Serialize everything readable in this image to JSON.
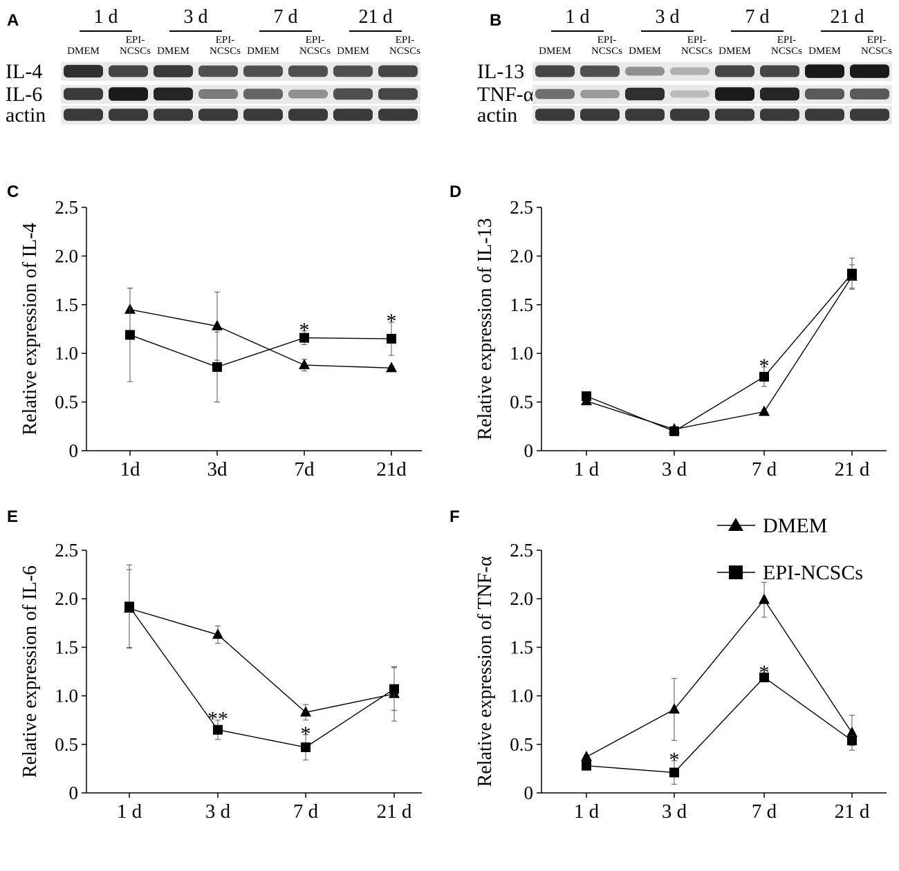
{
  "blots": [
    {
      "panel": "A",
      "timepoints": [
        "1 d",
        "3 d",
        "7 d",
        "21 d"
      ],
      "conditions": [
        "DMEM",
        "EPI-\nNCSCs"
      ],
      "rows": [
        "IL-4",
        "IL-6",
        "actin"
      ],
      "intensities": [
        [
          0.85,
          0.75,
          0.8,
          0.7,
          0.7,
          0.7,
          0.7,
          0.75
        ],
        [
          0.8,
          0.95,
          0.9,
          0.5,
          0.6,
          0.4,
          0.7,
          0.75
        ],
        [
          0.8,
          0.8,
          0.8,
          0.8,
          0.8,
          0.8,
          0.8,
          0.8
        ]
      ]
    },
    {
      "panel": "B",
      "timepoints": [
        "1 d",
        "3 d",
        "7 d",
        "21 d"
      ],
      "conditions": [
        "DMEM",
        "EPI-\nNCSCs"
      ],
      "rows": [
        "IL-13",
        "TNF-α",
        "actin"
      ],
      "intensities": [
        [
          0.75,
          0.7,
          0.4,
          0.25,
          0.75,
          0.75,
          0.95,
          0.95
        ],
        [
          0.55,
          0.35,
          0.85,
          0.2,
          0.95,
          0.9,
          0.65,
          0.65
        ],
        [
          0.8,
          0.8,
          0.8,
          0.8,
          0.8,
          0.8,
          0.8,
          0.8
        ]
      ]
    }
  ],
  "legend": {
    "entries": [
      {
        "name": "DMEM",
        "marker": "triangle"
      },
      {
        "name": "EPI-NCSCs",
        "marker": "square"
      }
    ]
  },
  "chart_data": [
    {
      "panel": "C",
      "type": "line",
      "ylabel": "Relative expression of IL-4",
      "categories": [
        "1d",
        "3d",
        "7d",
        "21d"
      ],
      "yticks": [
        "0",
        "0.5",
        "1.0",
        "1.5",
        "2.0",
        "2.5"
      ],
      "ylim": [
        0,
        2.5
      ],
      "series": [
        {
          "name": "DMEM",
          "marker": "triangle",
          "values": [
            1.45,
            1.28,
            0.88,
            0.85
          ],
          "errors": [
            0.22,
            0.35,
            0.06,
            0.02
          ]
        },
        {
          "name": "EPI-NCSCs",
          "marker": "square",
          "values": [
            1.19,
            0.86,
            1.16,
            1.15
          ],
          "errors": [
            0.48,
            0.36,
            0.07,
            0.17
          ]
        }
      ],
      "annotations": [
        {
          "category": 2,
          "value": 1.23,
          "text": "*"
        },
        {
          "category": 3,
          "value": 1.32,
          "text": "*"
        }
      ]
    },
    {
      "panel": "D",
      "type": "line",
      "ylabel": "Relative expression of IL-13",
      "categories": [
        "1 d",
        "3 d",
        "7 d",
        "21 d"
      ],
      "yticks": [
        "0",
        "0.5",
        "1.0",
        "1.5",
        "2.0",
        "2.5"
      ],
      "ylim": [
        0,
        2.5
      ],
      "series": [
        {
          "name": "DMEM",
          "marker": "triangle",
          "values": [
            0.51,
            0.22,
            0.4,
            1.79
          ],
          "errors": [
            0.02,
            0.02,
            0.02,
            0.12
          ]
        },
        {
          "name": "EPI-NCSCs",
          "marker": "square",
          "values": [
            0.56,
            0.2,
            0.76,
            1.82
          ],
          "errors": [
            0.02,
            0.02,
            0.1,
            0.16
          ]
        }
      ],
      "annotations": [
        {
          "category": 2,
          "value": 0.86,
          "text": "*"
        }
      ]
    },
    {
      "panel": "E",
      "type": "line",
      "ylabel": "Relative expression of IL-6",
      "categories": [
        "1 d",
        "3 d",
        "7 d",
        "21 d"
      ],
      "yticks": [
        "0",
        "0.5",
        "1.0",
        "1.5",
        "2.0",
        "2.5"
      ],
      "ylim": [
        0,
        2.5
      ],
      "series": [
        {
          "name": "DMEM",
          "marker": "triangle",
          "values": [
            1.9,
            1.63,
            0.83,
            1.02
          ],
          "errors": [
            0.4,
            0.09,
            0.08,
            0.28
          ]
        },
        {
          "name": "EPI-NCSCs",
          "marker": "square",
          "values": [
            1.92,
            0.65,
            0.47,
            1.07
          ],
          "errors": [
            0.43,
            0.1,
            0.13,
            0.22
          ]
        }
      ],
      "annotations": [
        {
          "category": 1,
          "value": 0.75,
          "text": "**"
        },
        {
          "category": 2,
          "value": 0.6,
          "text": "*"
        }
      ]
    },
    {
      "panel": "F",
      "type": "line",
      "ylabel": "Relative expression of TNF-α",
      "categories": [
        "1 d",
        "3 d",
        "7 d",
        "21 d"
      ],
      "yticks": [
        "0",
        "0.5",
        "1.0",
        "1.5",
        "2.0",
        "2.5"
      ],
      "ylim": [
        0,
        2.5
      ],
      "series": [
        {
          "name": "DMEM",
          "marker": "triangle",
          "values": [
            0.37,
            0.86,
            1.99,
            0.62
          ],
          "errors": [
            0.02,
            0.32,
            0.18,
            0.18
          ]
        },
        {
          "name": "EPI-NCSCs",
          "marker": "square",
          "values": [
            0.28,
            0.21,
            1.19,
            0.54
          ],
          "errors": [
            0.02,
            0.12,
            0.04,
            0.05
          ]
        }
      ],
      "annotations": [
        {
          "category": 1,
          "value": 0.33,
          "text": "*"
        },
        {
          "category": 2,
          "value": 1.23,
          "text": "*"
        }
      ]
    }
  ]
}
